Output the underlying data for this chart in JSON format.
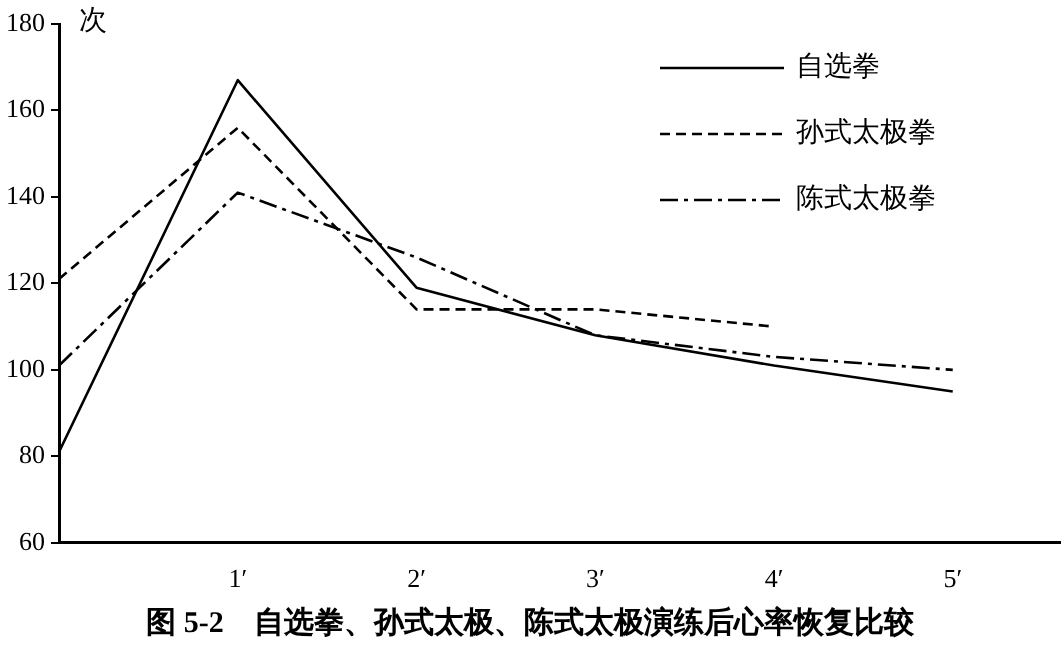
{
  "chart_data": {
    "type": "line",
    "title": "图 5-2　自选拳、孙式太极、陈式太极演练后心率恢复比较",
    "ylabel": "次",
    "x": [
      0,
      1,
      2,
      3,
      4,
      5
    ],
    "series": [
      {
        "name": "自选拳",
        "color": "#000000",
        "line_style": "solid",
        "values": [
          81,
          167,
          119,
          108,
          101,
          95
        ]
      },
      {
        "name": "孙式太极拳",
        "color": "#000000",
        "line_style": "dashed",
        "values": [
          121,
          156,
          114,
          114,
          110,
          null
        ]
      },
      {
        "name": "陈式太极拳",
        "color": "#000000",
        "line_style": "dashed",
        "values": [
          101,
          141,
          126,
          108,
          103,
          100
        ]
      }
    ],
    "xlim": [
      0,
      5.6
    ],
    "xticks": [
      {
        "value": 1,
        "label": "1′"
      },
      {
        "value": 2,
        "label": "2′"
      },
      {
        "value": 3,
        "label": "3′"
      },
      {
        "value": 4,
        "label": "4′"
      },
      {
        "value": 5,
        "label": "5′"
      }
    ],
    "ylim": [
      60,
      180
    ],
    "yticks": [
      60,
      80,
      100,
      120,
      140,
      160,
      180
    ],
    "grid": false,
    "legend": "top right",
    "marker": "none"
  }
}
